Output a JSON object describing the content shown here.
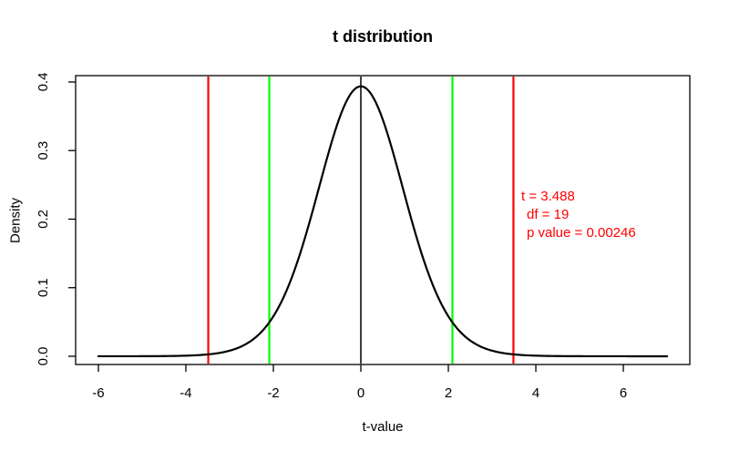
{
  "chart_data": {
    "type": "line",
    "title": "t distribution",
    "xlabel": "t-value",
    "ylabel": "Density",
    "grid": false,
    "legend": "none",
    "curve": {
      "distribution": "t",
      "df": 19,
      "domain": [
        -6,
        7
      ],
      "peak_x": 0,
      "peak_density": 0.394,
      "color": "#000000"
    },
    "xlim": [
      -6.52,
      7.52
    ],
    "ylim": [
      -0.012,
      0.4093
    ],
    "x_ticks": [
      -6,
      -4,
      -2,
      0,
      2,
      4,
      6
    ],
    "x_tick_labels": [
      "-6",
      "-4",
      "-2",
      "0",
      "2",
      "4",
      "6"
    ],
    "y_ticks": [
      0.0,
      0.1,
      0.2,
      0.3,
      0.4
    ],
    "y_tick_labels": [
      "0.0",
      "0.1",
      "0.2",
      "0.3",
      "0.4"
    ],
    "vlines": [
      {
        "x": -3.488,
        "color": "#ff0000"
      },
      {
        "x": -2.093,
        "color": "#00ff00"
      },
      {
        "x": 0,
        "color": "#000000"
      },
      {
        "x": 2.093,
        "color": "#00ff00"
      },
      {
        "x": 3.488,
        "color": "#ff0000"
      }
    ],
    "annotation": {
      "color": "#ff0000",
      "lines": [
        "t = 3.488",
        "df = 19",
        "p value = 0.00246"
      ]
    }
  }
}
